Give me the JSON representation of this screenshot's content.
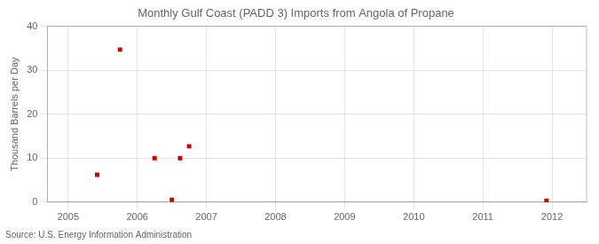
{
  "chart_data": {
    "type": "scatter",
    "title": "Monthly Gulf Coast (PADD 3) Imports from Angola of Propane",
    "ylabel": "Thousand Barrels per Day",
    "source": "Source: U.S. Energy Information Administration",
    "x": [
      2005.42,
      2005.75,
      2006.25,
      2006.5,
      2006.62,
      2006.75,
      2011.92
    ],
    "values": [
      6.2,
      34.7,
      10.0,
      0.5,
      10.0,
      12.7,
      0.3
    ],
    "color": "#cc0000",
    "marker": "square",
    "xlim": [
      2004.7,
      2012.5
    ],
    "xticks": [
      2005,
      2006,
      2007,
      2008,
      2009,
      2010,
      2011,
      2012
    ],
    "ylim": [
      0,
      40
    ],
    "yticks": [
      0,
      10,
      20,
      30,
      40
    ],
    "grid": true
  }
}
